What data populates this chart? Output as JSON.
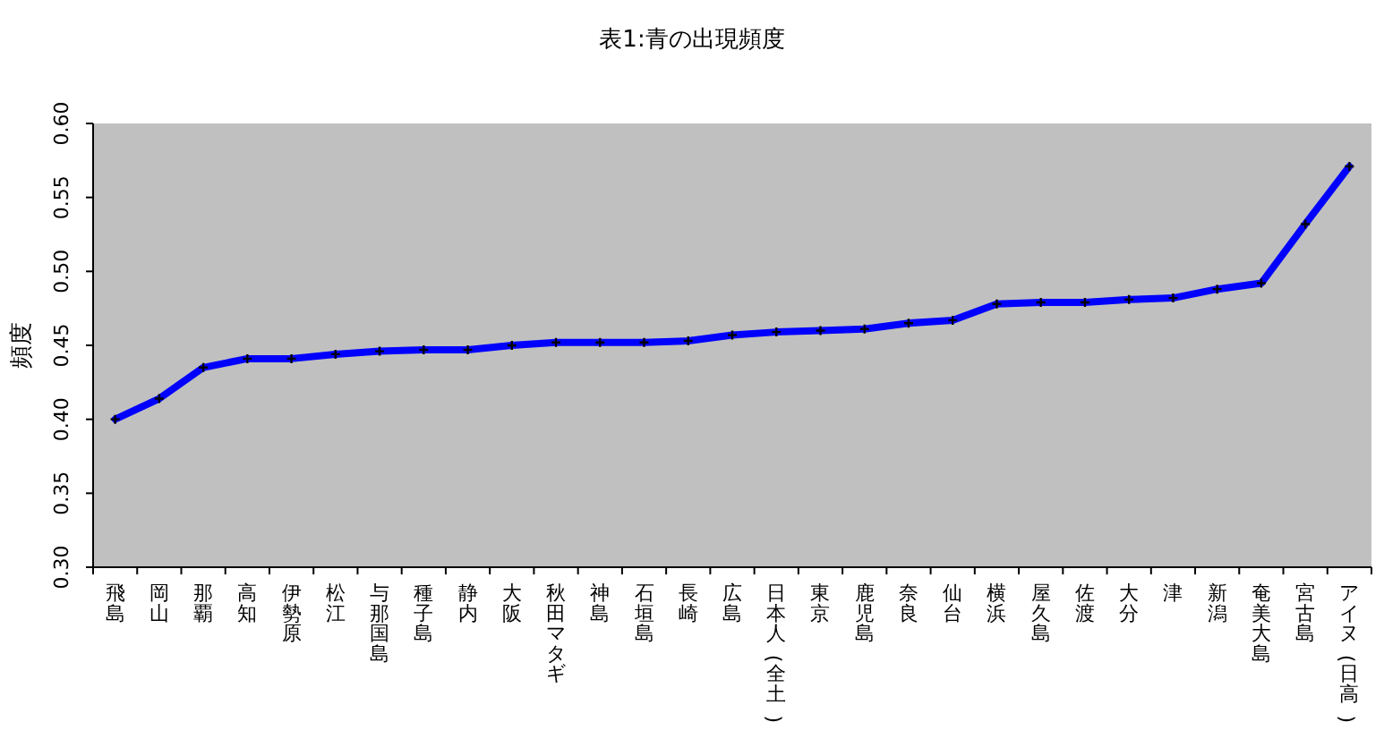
{
  "chart_data": {
    "type": "line",
    "title": "表1:青の出現頻度",
    "ylabel": "頻度",
    "categories": [
      "飛島",
      "岡山",
      "那覇",
      "高知",
      "伊勢原",
      "松江",
      "与那国島",
      "種子島",
      "静内",
      "大阪",
      "秋田マタギ",
      "神島",
      "石垣島",
      "長崎",
      "広島",
      "日本人(全土)",
      "東京",
      "鹿児島",
      "奈良",
      "仙台",
      "横浜",
      "屋久島",
      "佐渡",
      "大分",
      "津",
      "新潟",
      "奄美大島",
      "宮古島",
      "アイヌ(日高)"
    ],
    "series": [
      {
        "color": "#0000ff",
        "values": [
          0.4,
          0.414,
          0.435,
          0.441,
          0.441,
          0.444,
          0.446,
          0.447,
          0.447,
          0.45,
          0.452,
          0.452,
          0.452,
          0.453,
          0.457,
          0.459,
          0.46,
          0.461,
          0.465,
          0.467,
          0.478,
          0.479,
          0.479,
          0.481,
          0.482,
          0.488,
          0.492,
          0.532,
          0.571
        ]
      }
    ],
    "ylim": [
      0.3,
      0.6
    ],
    "yticks": [
      {
        "value": 0.3,
        "label": "0.30"
      },
      {
        "value": 0.35,
        "label": "0.35"
      },
      {
        "value": 0.4,
        "label": "0.40"
      },
      {
        "value": 0.45,
        "label": "0.45"
      },
      {
        "value": 0.5,
        "label": "0.50"
      },
      {
        "value": 0.55,
        "label": "0.55"
      },
      {
        "value": 0.6,
        "label": "0.60"
      }
    ],
    "marker": "cross",
    "line_style": "solid"
  }
}
